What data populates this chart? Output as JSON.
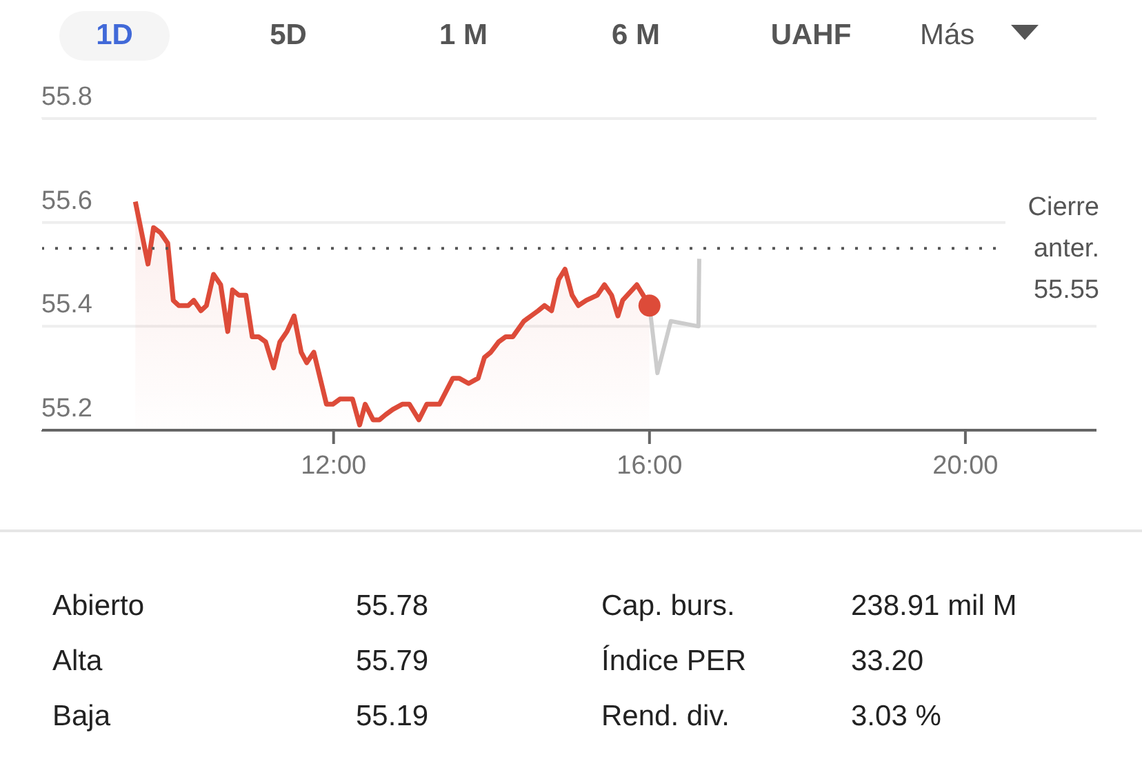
{
  "chart_data": {
    "type": "area",
    "xlim": [
      8.3,
      21.66
    ],
    "ylim": [
      55.2,
      55.8
    ],
    "xticks": [
      {
        "value": 12,
        "label": "12:00"
      },
      {
        "value": 16,
        "label": "16:00"
      },
      {
        "value": 20,
        "label": "20:00"
      }
    ],
    "yticks": [
      55.2,
      55.4,
      55.6,
      55.8
    ],
    "grid": "y",
    "series": [
      {
        "color": "#dd4b39",
        "x": [
          9.49,
          9.65,
          9.72,
          9.81,
          9.9,
          9.97,
          10.04,
          10.16,
          10.23,
          10.32,
          10.39,
          10.48,
          10.57,
          10.66,
          10.72,
          10.8,
          10.89,
          10.97,
          11.05,
          11.14,
          11.24,
          11.32,
          11.41,
          11.5,
          11.59,
          11.66,
          11.75,
          11.91,
          11.99,
          12.08,
          12.17,
          12.24,
          12.33,
          12.4,
          12.5,
          12.58,
          12.66,
          12.75,
          12.87,
          12.96,
          13.08,
          13.18,
          13.25,
          13.34,
          13.51,
          13.59,
          13.71,
          13.83,
          13.91,
          13.99,
          14.09,
          14.18,
          14.27,
          14.41,
          14.5,
          14.59,
          14.67,
          14.76,
          14.85,
          14.93,
          15.02,
          15.1,
          15.2,
          15.34,
          15.43,
          15.52,
          15.6,
          15.66,
          15.84,
          16.0
        ],
        "values": [
          55.64,
          55.52,
          55.59,
          55.58,
          55.56,
          55.45,
          55.44,
          55.44,
          55.45,
          55.43,
          55.44,
          55.5,
          55.48,
          55.39,
          55.47,
          55.46,
          55.46,
          55.38,
          55.38,
          55.37,
          55.32,
          55.37,
          55.39,
          55.42,
          55.35,
          55.33,
          55.35,
          55.25,
          55.25,
          55.26,
          55.26,
          55.26,
          55.21,
          55.25,
          55.22,
          55.22,
          55.23,
          55.24,
          55.25,
          55.25,
          55.22,
          55.25,
          55.25,
          55.25,
          55.3,
          55.3,
          55.29,
          55.3,
          55.34,
          55.35,
          55.37,
          55.38,
          55.38,
          55.41,
          55.42,
          55.43,
          55.44,
          55.43,
          55.49,
          55.51,
          55.46,
          55.44,
          55.45,
          55.46,
          55.48,
          55.46,
          55.42,
          55.45,
          55.48,
          55.44
        ]
      },
      {
        "type": "line",
        "color": "#cccccc",
        "x": [
          16.0,
          16.1,
          16.27,
          16.62,
          16.63
        ],
        "values": [
          55.44,
          55.31,
          55.41,
          55.4,
          55.53
        ]
      }
    ],
    "ref_lines": [
      {
        "axis": "y",
        "value": 55.55,
        "label": "Cierre anter. 55.55",
        "color": "#555555",
        "line_style": "dotted"
      }
    ],
    "annotations": [
      "1D",
      "5D",
      "1 M",
      "6 M",
      "UAHF",
      "Más",
      "Abierto",
      "55.78",
      "Alta",
      "55.79",
      "Baja",
      "55.19",
      "Cap. burs.",
      "238.91 mil M",
      "Índice PER",
      "33.20",
      "Rend. div.",
      "3.03 %"
    ]
  }
}
